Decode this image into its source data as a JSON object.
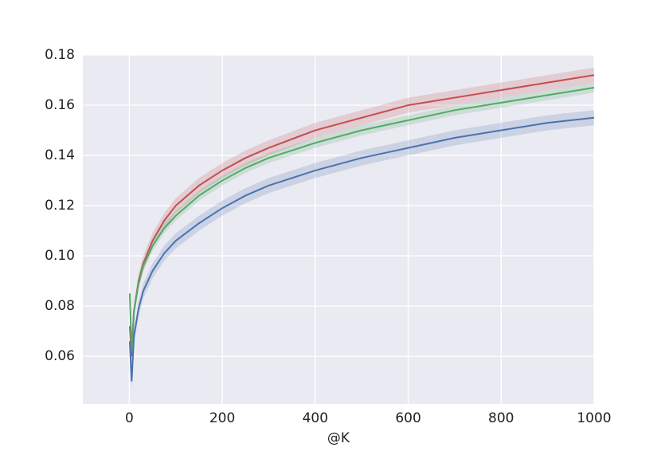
{
  "chart_data": {
    "type": "line",
    "x_label": "@K",
    "x": [
      1,
      5,
      10,
      20,
      30,
      50,
      75,
      100,
      150,
      200,
      250,
      300,
      400,
      500,
      600,
      700,
      800,
      900,
      1000
    ],
    "series": [
      {
        "color": "#c44e52",
        "values": [
          0.072,
          0.06,
          0.078,
          0.09,
          0.097,
          0.106,
          0.114,
          0.12,
          0.128,
          0.134,
          0.139,
          0.143,
          0.15,
          0.155,
          0.16,
          0.163,
          0.166,
          0.169,
          0.172
        ],
        "lower": [
          0.069,
          0.057,
          0.075,
          0.087,
          0.094,
          0.103,
          0.111,
          0.117,
          0.125,
          0.131,
          0.136,
          0.14,
          0.147,
          0.152,
          0.157,
          0.16,
          0.163,
          0.166,
          0.169
        ],
        "upper": [
          0.075,
          0.063,
          0.081,
          0.093,
          0.1,
          0.109,
          0.117,
          0.123,
          0.131,
          0.137,
          0.142,
          0.146,
          0.153,
          0.158,
          0.163,
          0.166,
          0.169,
          0.172,
          0.175
        ]
      },
      {
        "color": "#55a868",
        "values": [
          0.085,
          0.062,
          0.078,
          0.089,
          0.096,
          0.104,
          0.111,
          0.116,
          0.124,
          0.13,
          0.135,
          0.139,
          0.145,
          0.15,
          0.154,
          0.158,
          0.161,
          0.164,
          0.167
        ],
        "lower": [
          0.083,
          0.06,
          0.076,
          0.087,
          0.094,
          0.102,
          0.109,
          0.114,
          0.122,
          0.128,
          0.133,
          0.137,
          0.143,
          0.148,
          0.152,
          0.156,
          0.159,
          0.162,
          0.165
        ],
        "upper": [
          0.087,
          0.064,
          0.08,
          0.091,
          0.098,
          0.106,
          0.113,
          0.118,
          0.126,
          0.132,
          0.137,
          0.141,
          0.147,
          0.152,
          0.156,
          0.16,
          0.163,
          0.166,
          0.169
        ]
      },
      {
        "color": "#4c72b0",
        "values": [
          0.066,
          0.05,
          0.068,
          0.079,
          0.086,
          0.094,
          0.101,
          0.106,
          0.113,
          0.119,
          0.124,
          0.128,
          0.134,
          0.139,
          0.143,
          0.147,
          0.15,
          0.153,
          0.155
        ],
        "lower": [
          0.063,
          0.047,
          0.065,
          0.076,
          0.083,
          0.091,
          0.098,
          0.103,
          0.11,
          0.116,
          0.121,
          0.125,
          0.131,
          0.136,
          0.14,
          0.144,
          0.147,
          0.15,
          0.152
        ],
        "upper": [
          0.069,
          0.053,
          0.071,
          0.082,
          0.089,
          0.097,
          0.104,
          0.109,
          0.116,
          0.122,
          0.127,
          0.131,
          0.137,
          0.142,
          0.146,
          0.15,
          0.153,
          0.156,
          0.158
        ]
      }
    ],
    "xlim": [
      -100,
      1000
    ],
    "xticks": [
      0,
      200,
      400,
      600,
      800,
      1000
    ],
    "ylim": [
      0.041,
      0.18
    ],
    "yticks": [
      0.06,
      0.08,
      {
        "value": 0.1,
        "label": "0.10"
      },
      0.12,
      0.14,
      0.16,
      0.18
    ],
    "grid": true
  }
}
